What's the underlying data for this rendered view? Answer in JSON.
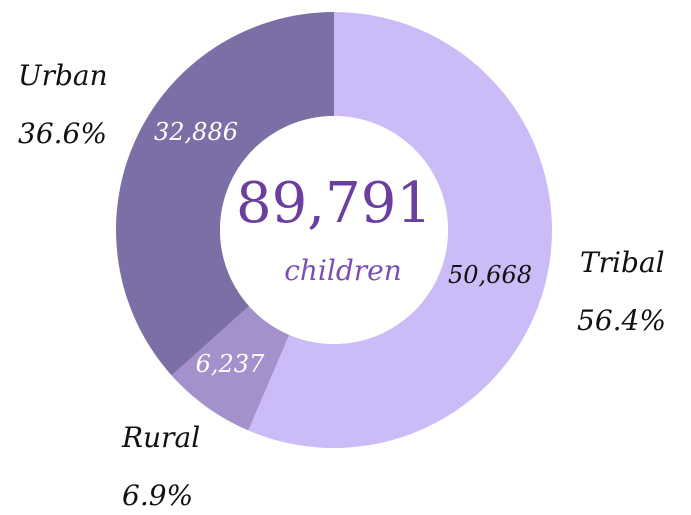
{
  "chart_data": {
    "type": "pie",
    "center": {
      "total": "89,791",
      "unit": "children"
    },
    "slices": [
      {
        "name": "Tribal",
        "value": 50668,
        "value_label": "50,668",
        "percent": "56.4%",
        "color": "#cbbbf7",
        "value_color": "#111111"
      },
      {
        "name": "Rural",
        "value": 6237,
        "value_label": "6,237",
        "percent": "6.9%",
        "color": "#a491cc",
        "value_color": "#ffffff"
      },
      {
        "name": "Urban",
        "value": 32886,
        "value_label": "32,886",
        "percent": "36.6%",
        "color": "#7b6fa6",
        "value_color": "#ffffff"
      }
    ]
  }
}
